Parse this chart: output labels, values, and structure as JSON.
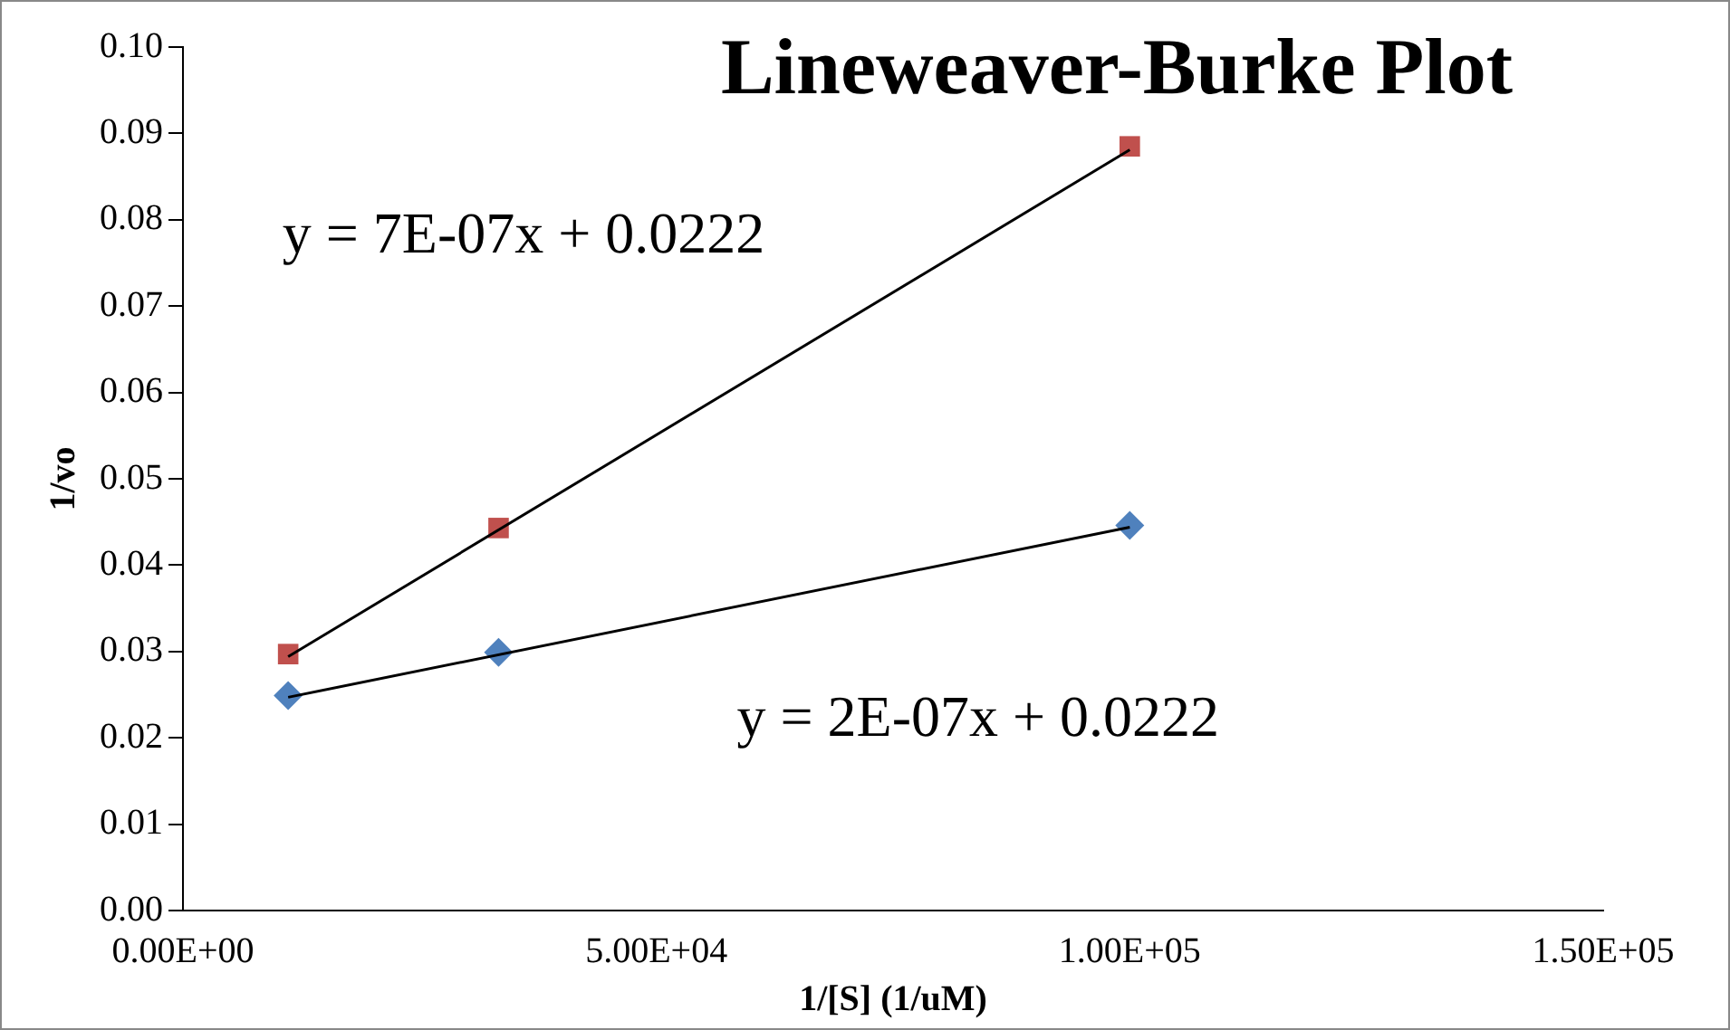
{
  "chart_data": {
    "type": "scatter",
    "title": "Lineweaver-Burke Plot",
    "xlabel": "1/[S] (1/uM)",
    "ylabel": "1/vo",
    "annotations": [
      "y = 7E-07x + 0.0222",
      "y = 2E-07x + 0.0222"
    ],
    "series": [
      {
        "type": "line",
        "color": "#000000",
        "marker": "none",
        "x": [
          11111,
          100000
        ],
        "values": [
          0.0294,
          0.0881
        ]
      },
      {
        "type": "line",
        "color": "#000000",
        "marker": "none",
        "x": [
          11111,
          100000
        ],
        "values": [
          0.0247,
          0.0444
        ]
      },
      {
        "type": "scatter",
        "color": "#4f81bd",
        "marker": "diamond",
        "x": [
          11111,
          33333,
          100000
        ],
        "values": [
          0.0249,
          0.0299,
          0.0446
        ]
      },
      {
        "type": "scatter",
        "color": "#c0504d",
        "marker": "square",
        "x": [
          11111,
          33333,
          100000
        ],
        "values": [
          0.0297,
          0.0443,
          0.0885
        ]
      }
    ],
    "xlim": [
      0,
      150000
    ],
    "xticks": [
      {
        "value": 0,
        "label": "0.00E+00"
      },
      {
        "value": 50000,
        "label": "5.00E+04"
      },
      {
        "value": 100000,
        "label": "1.00E+05"
      },
      {
        "value": 150000,
        "label": "1.50E+05"
      }
    ],
    "ylim": [
      0,
      0.1
    ],
    "yticks": [
      {
        "value": 0,
        "label": "0.00"
      },
      {
        "value": 0.01,
        "label": "0.01"
      },
      {
        "value": 0.02,
        "label": "0.02"
      },
      {
        "value": 0.03,
        "label": "0.03"
      },
      {
        "value": 0.04,
        "label": "0.04"
      },
      {
        "value": 0.05,
        "label": "0.05"
      },
      {
        "value": 0.06,
        "label": "0.06"
      },
      {
        "value": 0.07,
        "label": "0.07"
      },
      {
        "value": 0.08,
        "label": "0.08"
      },
      {
        "value": 0.09,
        "label": "0.09"
      },
      {
        "value": 0.1,
        "label": "0.10"
      }
    ],
    "grid": false,
    "legend": false
  }
}
